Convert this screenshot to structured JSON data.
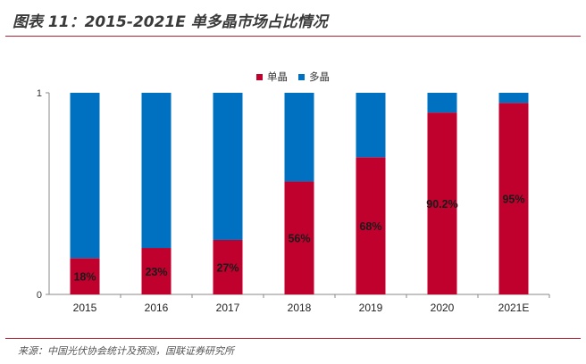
{
  "figure": {
    "title": "图表 11：2015-2021E 单多晶市场占比情况",
    "source": "来源：中国光伏协会统计及预测，国联证券研究所"
  },
  "colors": {
    "accent_rule": "#b22234",
    "mono": "#c0002d",
    "multi": "#0070c0",
    "label_text": "#1a1a1a"
  },
  "chart_data": {
    "type": "bar",
    "stacked": true,
    "categories": [
      "2015",
      "2016",
      "2017",
      "2018",
      "2019",
      "2020",
      "2021E"
    ],
    "series": [
      {
        "name": "单晶",
        "values": [
          0.18,
          0.23,
          0.27,
          0.56,
          0.68,
          0.902,
          0.95
        ],
        "labels": [
          "18%",
          "23%",
          "27%",
          "56%",
          "68%",
          "90.2%",
          "95%"
        ]
      },
      {
        "name": "多晶",
        "values": [
          0.82,
          0.77,
          0.73,
          0.44,
          0.32,
          0.098,
          0.05
        ]
      }
    ],
    "ylim": [
      0,
      1
    ],
    "yticks": [
      "0",
      "1"
    ],
    "grid": false,
    "legend_position": "top-center"
  }
}
